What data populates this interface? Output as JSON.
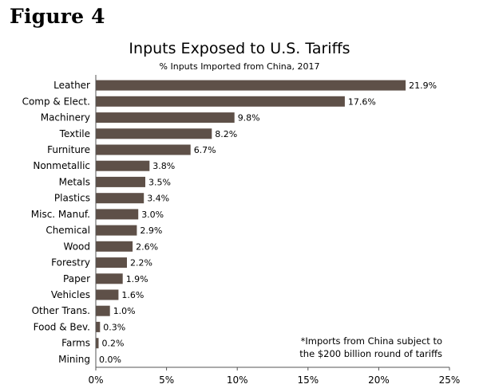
{
  "figure_label": "Figure 4",
  "footnote": {
    "line1": "*Imports from China subject to",
    "line2": "the $200 billion round of tariffs"
  },
  "colors": {
    "bar": "#5e5048",
    "axis": "#555555",
    "text": "#000000"
  },
  "chart_data": {
    "type": "bar",
    "orientation": "horizontal",
    "title": "Inputs Exposed to U.S. Tariffs",
    "subtitle": "% Inputs Imported from China, 2017",
    "xlabel": "",
    "ylabel": "",
    "xlim": [
      0,
      25
    ],
    "grid": false,
    "categories": [
      "Leather",
      "Comp & Elect.",
      "Machinery",
      "Textile",
      "Furniture",
      "Nonmetallic",
      "Metals",
      "Plastics",
      "Misc. Manuf.",
      "Chemical",
      "Wood",
      "Forestry",
      "Paper",
      "Vehicles",
      "Other Trans.",
      "Food & Bev.",
      "Farms",
      "Mining"
    ],
    "values": [
      21.9,
      17.6,
      9.8,
      8.2,
      6.7,
      3.8,
      3.5,
      3.4,
      3.0,
      2.9,
      2.6,
      2.2,
      1.9,
      1.6,
      1.0,
      0.3,
      0.2,
      0.0
    ],
    "value_labels": [
      "21.9%",
      "17.6%",
      "9.8%",
      "8.2%",
      "6.7%",
      "3.8%",
      "3.5%",
      "3.4%",
      "3.0%",
      "2.9%",
      "2.6%",
      "2.2%",
      "1.9%",
      "1.6%",
      "1.0%",
      "0.3%",
      "0.2%",
      "0.0%"
    ],
    "x_ticks": [
      0,
      5,
      10,
      15,
      20,
      25
    ],
    "x_tick_labels": [
      "0%",
      "5%",
      "10%",
      "15%",
      "20%",
      "25%"
    ]
  }
}
